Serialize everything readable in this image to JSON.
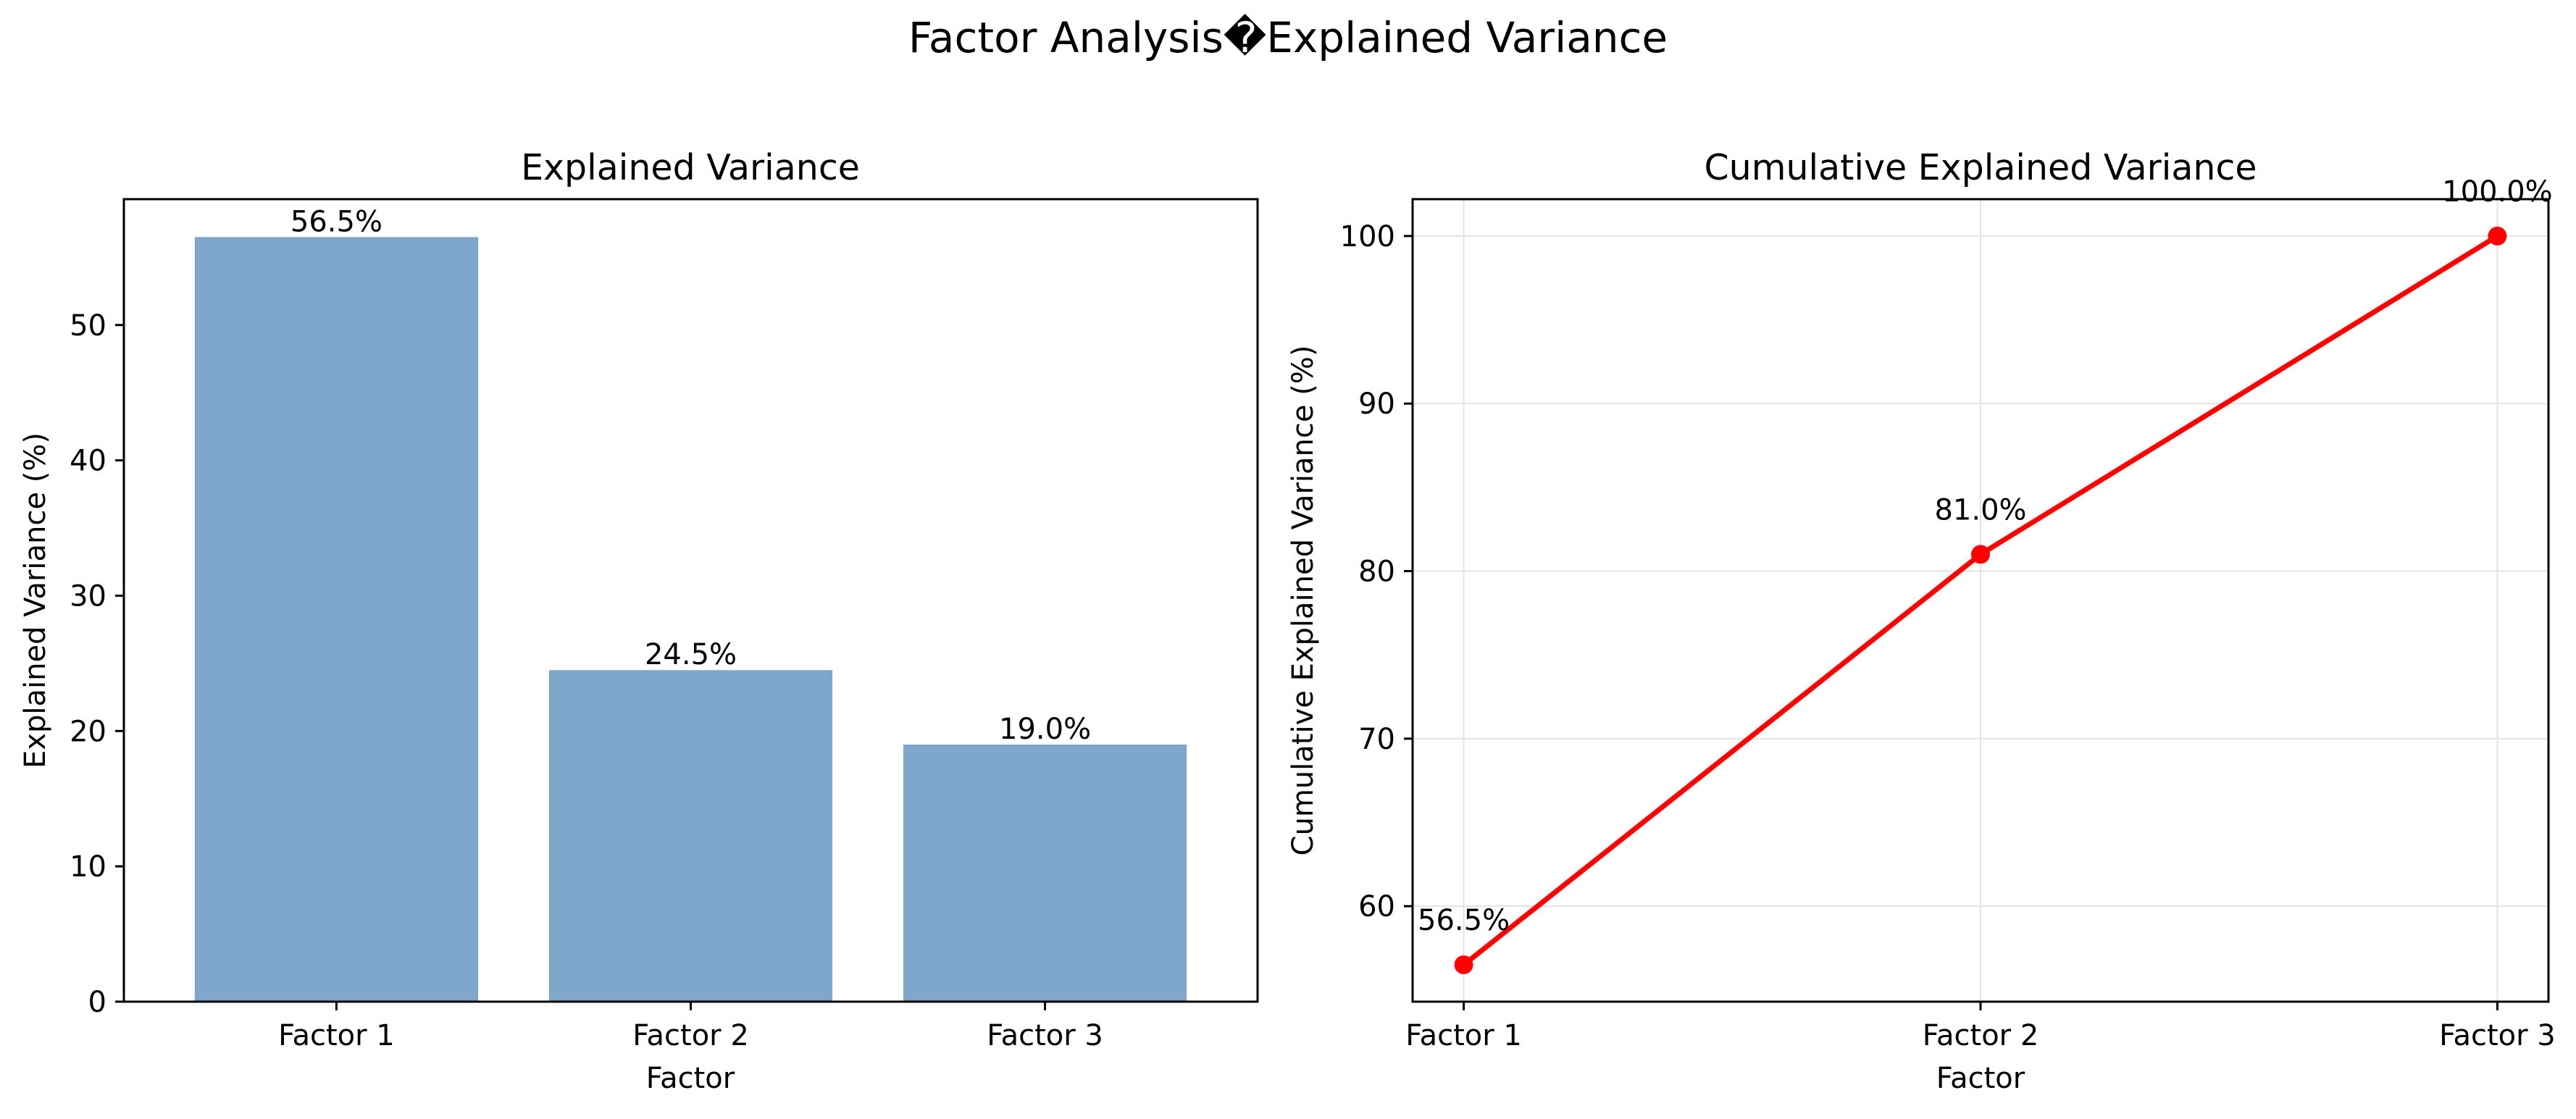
{
  "figure": {
    "suptitle": "Factor Analysis�Explained Variance"
  },
  "colors": {
    "bar": "#7ea7cb",
    "line": "#ff0000",
    "grid": "#e3e3e3",
    "axis": "#000000"
  },
  "chart_data": [
    {
      "type": "bar",
      "title": "Explained Variance",
      "xlabel": "Factor",
      "ylabel": "Explained Variance (%)",
      "categories": [
        "Factor 1",
        "Factor 2",
        "Factor 3"
      ],
      "values": [
        56.5,
        24.5,
        19.0
      ],
      "data_labels": [
        "56.5%",
        "24.5%",
        "19.0%"
      ],
      "ylim": [
        0,
        59.3
      ],
      "yticks": [
        0,
        10,
        20,
        30,
        40,
        50
      ],
      "grid": false,
      "legend": null
    },
    {
      "type": "line",
      "title": "Cumulative Explained Variance",
      "xlabel": "Factor",
      "ylabel": "Cumulative Explained Variance  (%)",
      "categories": [
        "Factor 1",
        "Factor 2",
        "Factor 3"
      ],
      "values": [
        56.5,
        81.0,
        100.0
      ],
      "data_labels": [
        "56.5%",
        "81.0%",
        "100.0%"
      ],
      "ylim": [
        54.3,
        102.2
      ],
      "yticks": [
        60,
        70,
        80,
        90,
        100
      ],
      "grid": true,
      "legend": null
    }
  ]
}
